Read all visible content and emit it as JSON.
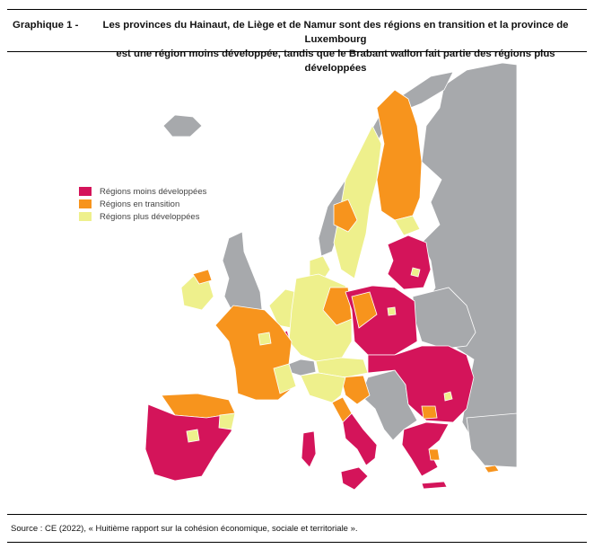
{
  "figure": {
    "label": "Graphique 1 -",
    "title_line1": "Les provinces du Hainaut, de Liège et de Namur sont des régions en transition et la province de Luxembourg",
    "title_line2": "est une région moins développée, tandis que le Brabant wallon fait partie des régions plus développées",
    "source": "Source : CE (2022), « Huitième rapport sur la cohésion économique, sociale et territoriale »."
  },
  "legend": [
    {
      "label": "Régions moins développées",
      "color": "#d4145a"
    },
    {
      "label": "Régions en transition",
      "color": "#f7941d"
    },
    {
      "label": "Régions plus développées",
      "color": "#eef08c"
    }
  ],
  "colors": {
    "non_eu": "#a7a9ac",
    "less": "#d4145a",
    "transition": "#f7941d",
    "more": "#eef08c"
  }
}
